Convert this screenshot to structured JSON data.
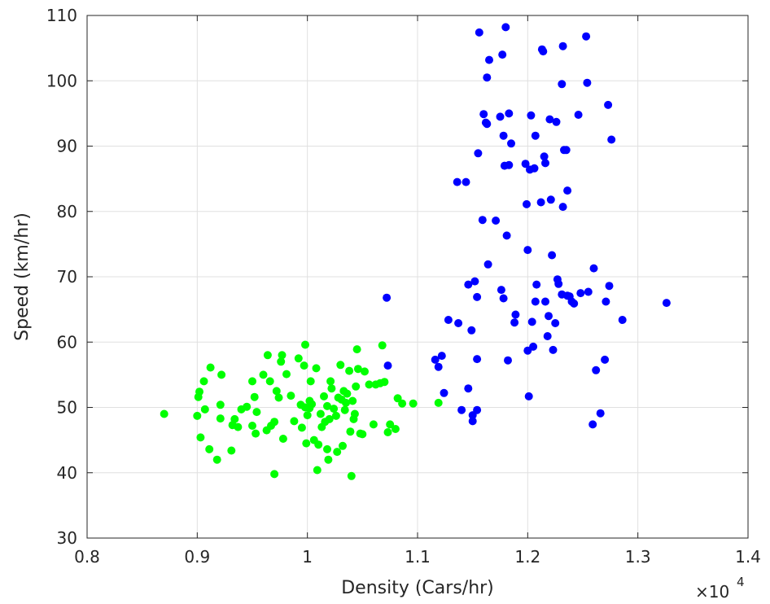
{
  "chart_data": {
    "type": "scatter",
    "xlabel": "Density (Cars/hr)",
    "ylabel": "Speed (km/hr)",
    "x_exponent_label": "×10",
    "x_exponent": "4",
    "xlim": [
      0.8,
      1.4
    ],
    "ylim": [
      30,
      110
    ],
    "xticks": [
      "0.8",
      "0.9",
      "1",
      "1.1",
      "1.2",
      "1.3",
      "1.4"
    ],
    "yticks": [
      "30",
      "40",
      "50",
      "60",
      "70",
      "80",
      "90",
      "100",
      "110"
    ],
    "grid": true,
    "series": [
      {
        "color": "#00ff00",
        "points": [
          [
            0.87,
            49.0
          ],
          [
            0.9,
            48.7
          ],
          [
            0.901,
            51.6
          ],
          [
            0.902,
            52.4
          ],
          [
            0.903,
            45.4
          ],
          [
            0.906,
            54.0
          ],
          [
            0.907,
            49.7
          ],
          [
            0.911,
            43.6
          ],
          [
            0.912,
            56.1
          ],
          [
            0.918,
            42.0
          ],
          [
            0.921,
            50.4
          ],
          [
            0.921,
            48.3
          ],
          [
            0.922,
            55.0
          ],
          [
            0.931,
            43.4
          ],
          [
            0.932,
            47.3
          ],
          [
            0.934,
            48.2
          ],
          [
            0.937,
            47.0
          ],
          [
            0.94,
            49.7
          ],
          [
            0.945,
            50.1
          ],
          [
            0.95,
            54.0
          ],
          [
            0.95,
            47.2
          ],
          [
            0.952,
            51.6
          ],
          [
            0.953,
            46.0
          ],
          [
            0.954,
            49.3
          ],
          [
            0.96,
            55.0
          ],
          [
            0.963,
            46.5
          ],
          [
            0.964,
            58.0
          ],
          [
            0.966,
            54.0
          ],
          [
            0.967,
            47.2
          ],
          [
            0.97,
            47.8
          ],
          [
            0.97,
            39.8
          ],
          [
            0.972,
            52.5
          ],
          [
            0.974,
            51.5
          ],
          [
            0.976,
            57.0
          ],
          [
            0.977,
            58.0
          ],
          [
            0.978,
            45.2
          ],
          [
            0.981,
            55.1
          ],
          [
            0.985,
            51.8
          ],
          [
            0.988,
            47.9
          ],
          [
            0.992,
            57.5
          ],
          [
            0.994,
            50.4
          ],
          [
            0.995,
            46.9
          ],
          [
            0.997,
            56.4
          ],
          [
            0.998,
            59.6
          ],
          [
            0.998,
            50.0
          ],
          [
            0.999,
            44.5
          ],
          [
            1.0,
            48.8
          ],
          [
            1.002,
            49.9
          ],
          [
            1.002,
            51.0
          ],
          [
            1.003,
            54.0
          ],
          [
            1.004,
            50.5
          ],
          [
            1.006,
            45.0
          ],
          [
            1.008,
            56.0
          ],
          [
            1.009,
            40.4
          ],
          [
            1.01,
            44.3
          ],
          [
            1.012,
            49.0
          ],
          [
            1.013,
            47.0
          ],
          [
            1.015,
            51.7
          ],
          [
            1.016,
            47.8
          ],
          [
            1.018,
            43.6
          ],
          [
            1.018,
            50.2
          ],
          [
            1.019,
            42.0
          ],
          [
            1.02,
            48.2
          ],
          [
            1.021,
            54.0
          ],
          [
            1.022,
            52.9
          ],
          [
            1.024,
            49.8
          ],
          [
            1.026,
            48.7
          ],
          [
            1.027,
            43.2
          ],
          [
            1.028,
            51.5
          ],
          [
            1.03,
            56.5
          ],
          [
            1.031,
            51.2
          ],
          [
            1.032,
            44.1
          ],
          [
            1.033,
            52.5
          ],
          [
            1.034,
            49.6
          ],
          [
            1.035,
            50.7
          ],
          [
            1.036,
            52.1
          ],
          [
            1.038,
            55.6
          ],
          [
            1.039,
            46.3
          ],
          [
            1.04,
            39.5
          ],
          [
            1.041,
            51.0
          ],
          [
            1.042,
            48.2
          ],
          [
            1.043,
            49.0
          ],
          [
            1.044,
            53.2
          ],
          [
            1.045,
            58.9
          ],
          [
            1.046,
            55.9
          ],
          [
            1.048,
            46.0
          ],
          [
            1.05,
            45.9
          ],
          [
            1.052,
            55.5
          ],
          [
            1.056,
            53.5
          ],
          [
            1.06,
            47.4
          ],
          [
            1.062,
            53.5
          ],
          [
            1.066,
            53.7
          ],
          [
            1.068,
            59.5
          ],
          [
            1.07,
            53.9
          ],
          [
            1.073,
            46.2
          ],
          [
            1.075,
            47.4
          ],
          [
            1.08,
            46.7
          ],
          [
            1.082,
            51.4
          ],
          [
            1.086,
            50.6
          ],
          [
            1.096,
            50.6
          ],
          [
            1.119,
            50.7
          ]
        ]
      },
      {
        "color": "#0000ff",
        "points": [
          [
            1.072,
            66.8
          ],
          [
            1.073,
            56.4
          ],
          [
            1.116,
            57.3
          ],
          [
            1.119,
            56.2
          ],
          [
            1.122,
            57.9
          ],
          [
            1.124,
            52.2
          ],
          [
            1.128,
            63.4
          ],
          [
            1.136,
            84.5
          ],
          [
            1.137,
            62.9
          ],
          [
            1.14,
            49.6
          ],
          [
            1.144,
            84.5
          ],
          [
            1.146,
            68.8
          ],
          [
            1.146,
            52.9
          ],
          [
            1.149,
            61.8
          ],
          [
            1.15,
            47.9
          ],
          [
            1.15,
            48.8
          ],
          [
            1.152,
            69.3
          ],
          [
            1.154,
            57.4
          ],
          [
            1.154,
            66.9
          ],
          [
            1.154,
            49.6
          ],
          [
            1.155,
            88.9
          ],
          [
            1.156,
            107.4
          ],
          [
            1.159,
            78.7
          ],
          [
            1.16,
            94.9
          ],
          [
            1.162,
            93.6
          ],
          [
            1.163,
            93.4
          ],
          [
            1.163,
            100.5
          ],
          [
            1.164,
            71.9
          ],
          [
            1.165,
            103.2
          ],
          [
            1.171,
            78.6
          ],
          [
            1.175,
            94.5
          ],
          [
            1.176,
            68.0
          ],
          [
            1.177,
            104.0
          ],
          [
            1.178,
            66.7
          ],
          [
            1.178,
            91.6
          ],
          [
            1.179,
            87.0
          ],
          [
            1.18,
            108.2
          ],
          [
            1.181,
            76.3
          ],
          [
            1.182,
            57.2
          ],
          [
            1.183,
            95.0
          ],
          [
            1.183,
            87.1
          ],
          [
            1.185,
            90.4
          ],
          [
            1.188,
            63.0
          ],
          [
            1.189,
            64.2
          ],
          [
            1.198,
            87.3
          ],
          [
            1.199,
            81.1
          ],
          [
            1.2,
            74.1
          ],
          [
            1.2,
            58.7
          ],
          [
            1.201,
            51.7
          ],
          [
            1.202,
            86.4
          ],
          [
            1.203,
            94.7
          ],
          [
            1.204,
            63.1
          ],
          [
            1.205,
            59.3
          ],
          [
            1.206,
            86.6
          ],
          [
            1.207,
            66.2
          ],
          [
            1.207,
            91.6
          ],
          [
            1.208,
            68.8
          ],
          [
            1.212,
            81.4
          ],
          [
            1.213,
            104.8
          ],
          [
            1.214,
            104.5
          ],
          [
            1.215,
            88.4
          ],
          [
            1.216,
            66.2
          ],
          [
            1.216,
            87.4
          ],
          [
            1.218,
            60.9
          ],
          [
            1.219,
            64.0
          ],
          [
            1.22,
            94.1
          ],
          [
            1.221,
            81.8
          ],
          [
            1.222,
            73.3
          ],
          [
            1.223,
            58.8
          ],
          [
            1.225,
            62.9
          ],
          [
            1.226,
            93.7
          ],
          [
            1.227,
            69.6
          ],
          [
            1.228,
            68.9
          ],
          [
            1.231,
            67.3
          ],
          [
            1.231,
            99.5
          ],
          [
            1.232,
            80.7
          ],
          [
            1.232,
            105.3
          ],
          [
            1.233,
            89.4
          ],
          [
            1.235,
            89.4
          ],
          [
            1.236,
            83.2
          ],
          [
            1.236,
            67.1
          ],
          [
            1.238,
            67.0
          ],
          [
            1.24,
            66.2
          ],
          [
            1.242,
            65.9
          ],
          [
            1.246,
            94.8
          ],
          [
            1.248,
            67.5
          ],
          [
            1.253,
            106.8
          ],
          [
            1.254,
            99.7
          ],
          [
            1.255,
            67.7
          ],
          [
            1.259,
            47.4
          ],
          [
            1.26,
            71.3
          ],
          [
            1.262,
            55.7
          ],
          [
            1.266,
            49.1
          ],
          [
            1.27,
            57.3
          ],
          [
            1.271,
            66.2
          ],
          [
            1.273,
            96.3
          ],
          [
            1.274,
            68.6
          ],
          [
            1.276,
            91.0
          ],
          [
            1.286,
            63.4
          ],
          [
            1.326,
            66.0
          ]
        ]
      }
    ]
  }
}
